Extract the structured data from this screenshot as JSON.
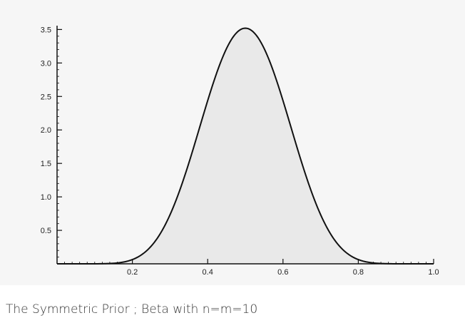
{
  "caption": "The Symmetric Prior ; Beta with n=m=10",
  "colors": {
    "panel_background": "#f6f6f6",
    "area_fill": "#e9e9e9",
    "curve_stroke": "#111111",
    "axis": "#111111",
    "caption_text": "#333333"
  },
  "chart_data": {
    "type": "area",
    "title": "",
    "xlabel": "",
    "ylabel": "",
    "distribution": "Beta(10, 10)",
    "xlim": [
      0,
      1.0
    ],
    "ylim": [
      0,
      3.6
    ],
    "x_ticks": [
      "0.2",
      "0.4",
      "0.6",
      "0.8",
      "1.0"
    ],
    "y_ticks": [
      "0.5",
      "1.0",
      "1.5",
      "2.0",
      "2.5",
      "3.0",
      "3.5"
    ],
    "series": [
      {
        "x": [
          0,
          0.05,
          0.1,
          0.15,
          0.2,
          0.25,
          0.3,
          0.35,
          0.4,
          0.45,
          0.5,
          0.55,
          0.6,
          0.65,
          0.7,
          0.75,
          0.8,
          0.85,
          0.9,
          0.95,
          1.0
        ],
        "values": [
          0,
          0.0,
          0.0,
          0.02,
          0.13,
          0.49,
          1.14,
          2.02,
          2.85,
          3.4,
          3.52,
          3.4,
          2.85,
          2.02,
          1.14,
          0.49,
          0.13,
          0.02,
          0.0,
          0.0,
          0
        ]
      }
    ],
    "grid": false,
    "legend": "none"
  }
}
